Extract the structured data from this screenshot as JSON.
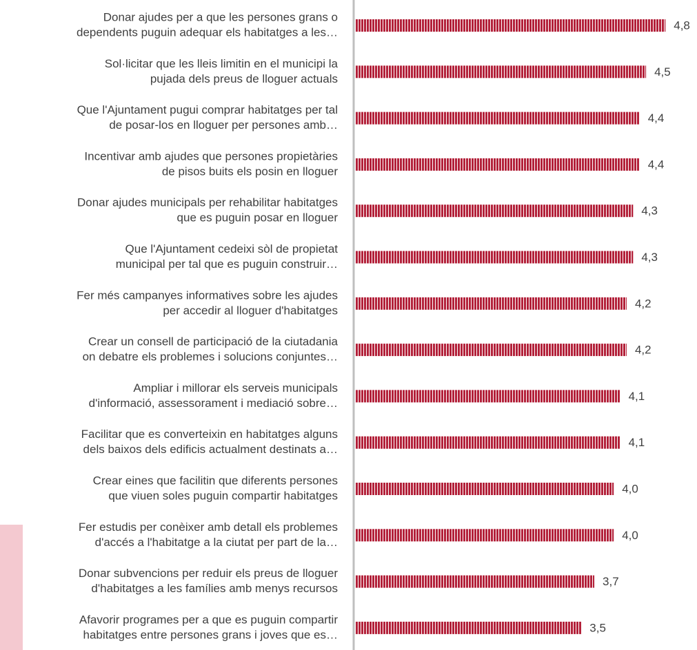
{
  "chart_data": {
    "type": "bar",
    "orientation": "horizontal",
    "color": "#b3213a",
    "categories": [
      [
        "Donar ajudes per a que les persones grans o",
        "dependents puguin adequar els habitatges a les…"
      ],
      [
        "Sol·licitar que les lleis limitin en el municipi la",
        "pujada dels preus de lloguer actuals"
      ],
      [
        "Que l'Ajuntament pugui comprar habitatges per tal",
        "de posar-los en lloguer per persones amb…"
      ],
      [
        "Incentivar amb ajudes que persones propietàries",
        "de pisos buits els posin en lloguer"
      ],
      [
        "Donar ajudes municipals per rehabilitar habitatges",
        "que es puguin posar en lloguer"
      ],
      [
        "Que l'Ajuntament cedeixi sòl de propietat",
        "municipal per tal que es puguin construir…"
      ],
      [
        "Fer més campanyes informatives sobre les ajudes",
        "per accedir al lloguer d'habitatges"
      ],
      [
        "Crear un consell de participació de la ciutadania",
        "on debatre els problemes i solucions conjuntes…"
      ],
      [
        "Ampliar i millorar els serveis municipals",
        "d'informació, assessorament i mediació sobre…"
      ],
      [
        "Facilitar que es converteixin en habitatges alguns",
        "dels baixos dels edificis actualment destinats a…"
      ],
      [
        "Crear eines que facilitin que diferents persones",
        "que viuen soles puguin compartir  habitatges"
      ],
      [
        "Fer estudis per conèixer amb detall els problemes",
        "d'accés a l'habitatge a la ciutat per part de la…"
      ],
      [
        "Donar subvencions per reduir els preus de lloguer",
        "d'habitatges a les famílies amb menys recursos"
      ],
      [
        "Afavorir programes per a que es puguin compartir",
        "habitatges entre persones grans i joves que es…"
      ]
    ],
    "values": [
      4.8,
      4.5,
      4.4,
      4.4,
      4.3,
      4.3,
      4.2,
      4.2,
      4.1,
      4.1,
      4.0,
      4.0,
      3.7,
      3.5
    ],
    "value_labels": [
      "4,8",
      "4,5",
      "4,4",
      "4,4",
      "4,3",
      "4,3",
      "4,2",
      "4,2",
      "4,1",
      "4,1",
      "4,0",
      "4,0",
      "3,7",
      "3,5"
    ],
    "xlim": [
      0,
      5
    ]
  }
}
